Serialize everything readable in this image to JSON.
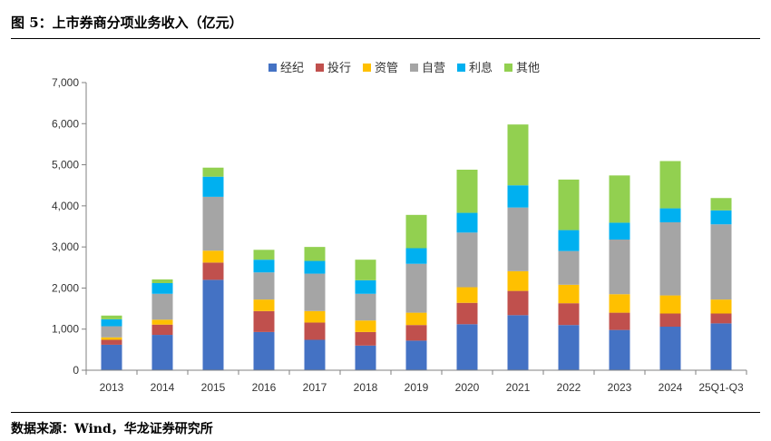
{
  "title": "图 5：上市券商分项业务收入（亿元）",
  "source": "数据来源：Wind，华龙证券研究所",
  "chart_data": {
    "type": "bar",
    "stacked": true,
    "title": "图 5：上市券商分项业务收入（亿元）",
    "xlabel": "",
    "ylabel": "",
    "ylim": [
      0,
      7000
    ],
    "yticks": [
      0,
      1000,
      2000,
      3000,
      4000,
      5000,
      6000,
      7000
    ],
    "ytick_labels": [
      "0",
      "1,000",
      "2,000",
      "3,000",
      "4,000",
      "5,000",
      "6,000",
      "7,000"
    ],
    "grid": false,
    "legend_position": "top-center",
    "categories": [
      "2013",
      "2014",
      "2015",
      "2016",
      "2017",
      "2018",
      "2019",
      "2020",
      "2021",
      "2022",
      "2023",
      "2024",
      "25Q1-Q3"
    ],
    "series": [
      {
        "name": "经纪",
        "color": "#4472C4",
        "values": [
          620,
          860,
          2200,
          930,
          740,
          600,
          720,
          1120,
          1340,
          1100,
          980,
          1060,
          1140
        ]
      },
      {
        "name": "投行",
        "color": "#C0504D",
        "values": [
          120,
          250,
          420,
          510,
          420,
          330,
          380,
          520,
          590,
          530,
          420,
          320,
          240
        ]
      },
      {
        "name": "资管",
        "color": "#FFC000",
        "values": [
          60,
          120,
          290,
          280,
          280,
          280,
          300,
          380,
          480,
          450,
          450,
          440,
          340
        ]
      },
      {
        "name": "自营",
        "color": "#A5A5A5",
        "values": [
          270,
          630,
          1310,
          660,
          910,
          650,
          1190,
          1330,
          1550,
          820,
          1330,
          1780,
          1830
        ]
      },
      {
        "name": "利息",
        "color": "#00B0F0",
        "values": [
          170,
          260,
          490,
          310,
          310,
          330,
          380,
          480,
          540,
          510,
          410,
          340,
          340
        ]
      },
      {
        "name": "其他",
        "color": "#92D050",
        "values": [
          90,
          90,
          220,
          240,
          340,
          500,
          810,
          1050,
          1480,
          1230,
          1150,
          1150,
          300
        ]
      }
    ]
  }
}
